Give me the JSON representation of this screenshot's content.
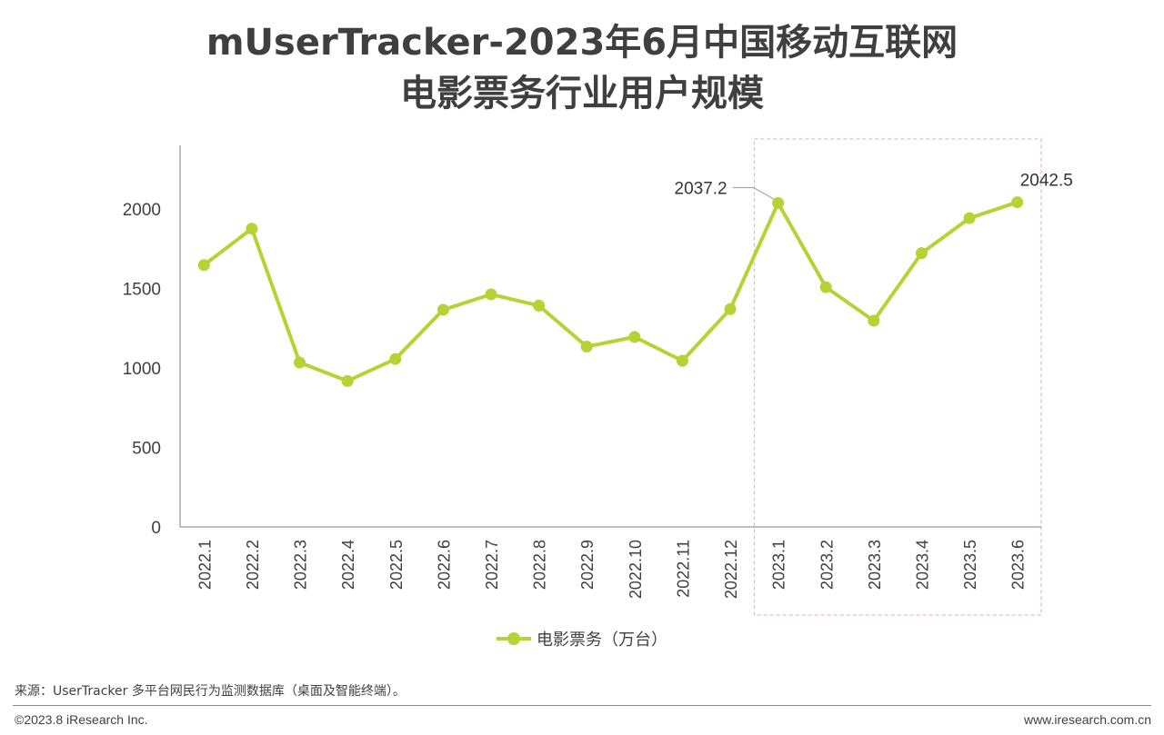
{
  "title": {
    "line1": "mUserTracker-2023年6月中国移动互联网",
    "line2": "电影票务行业用户规模"
  },
  "chart_data": {
    "type": "line",
    "categories": [
      "2022.1",
      "2022.2",
      "2022.3",
      "2022.4",
      "2022.5",
      "2022.6",
      "2022.7",
      "2022.8",
      "2022.9",
      "2022.10",
      "2022.11",
      "2022.12",
      "2023.1",
      "2023.2",
      "2023.3",
      "2023.4",
      "2023.5",
      "2023.6"
    ],
    "series": [
      {
        "name": "电影票务（万台）",
        "color": "#b5d334",
        "values": [
          1647,
          1876,
          1034,
          918,
          1056,
          1366,
          1463,
          1392,
          1134,
          1195,
          1045,
          1370,
          2037.2,
          1508,
          1297,
          1722,
          1942,
          2042.5
        ]
      }
    ],
    "ylim": [
      0,
      2400
    ],
    "yticks": [
      0,
      500,
      1000,
      1500,
      2000
    ],
    "data_labels": [
      {
        "index": 12,
        "text": "2037.2"
      },
      {
        "index": 17,
        "text": "2042.5"
      }
    ],
    "highlight_range": [
      "2023.1",
      "2023.6"
    ],
    "highlight_color": "#f4a6ae",
    "grid": false,
    "legend_position": "bottom"
  },
  "footer": {
    "source": "来源：UserTracker 多平台网民行为监测数据库（桌面及智能终端）。",
    "copyright": "©2023.8 iResearch Inc.",
    "website": "www.iresearch.com.cn"
  }
}
